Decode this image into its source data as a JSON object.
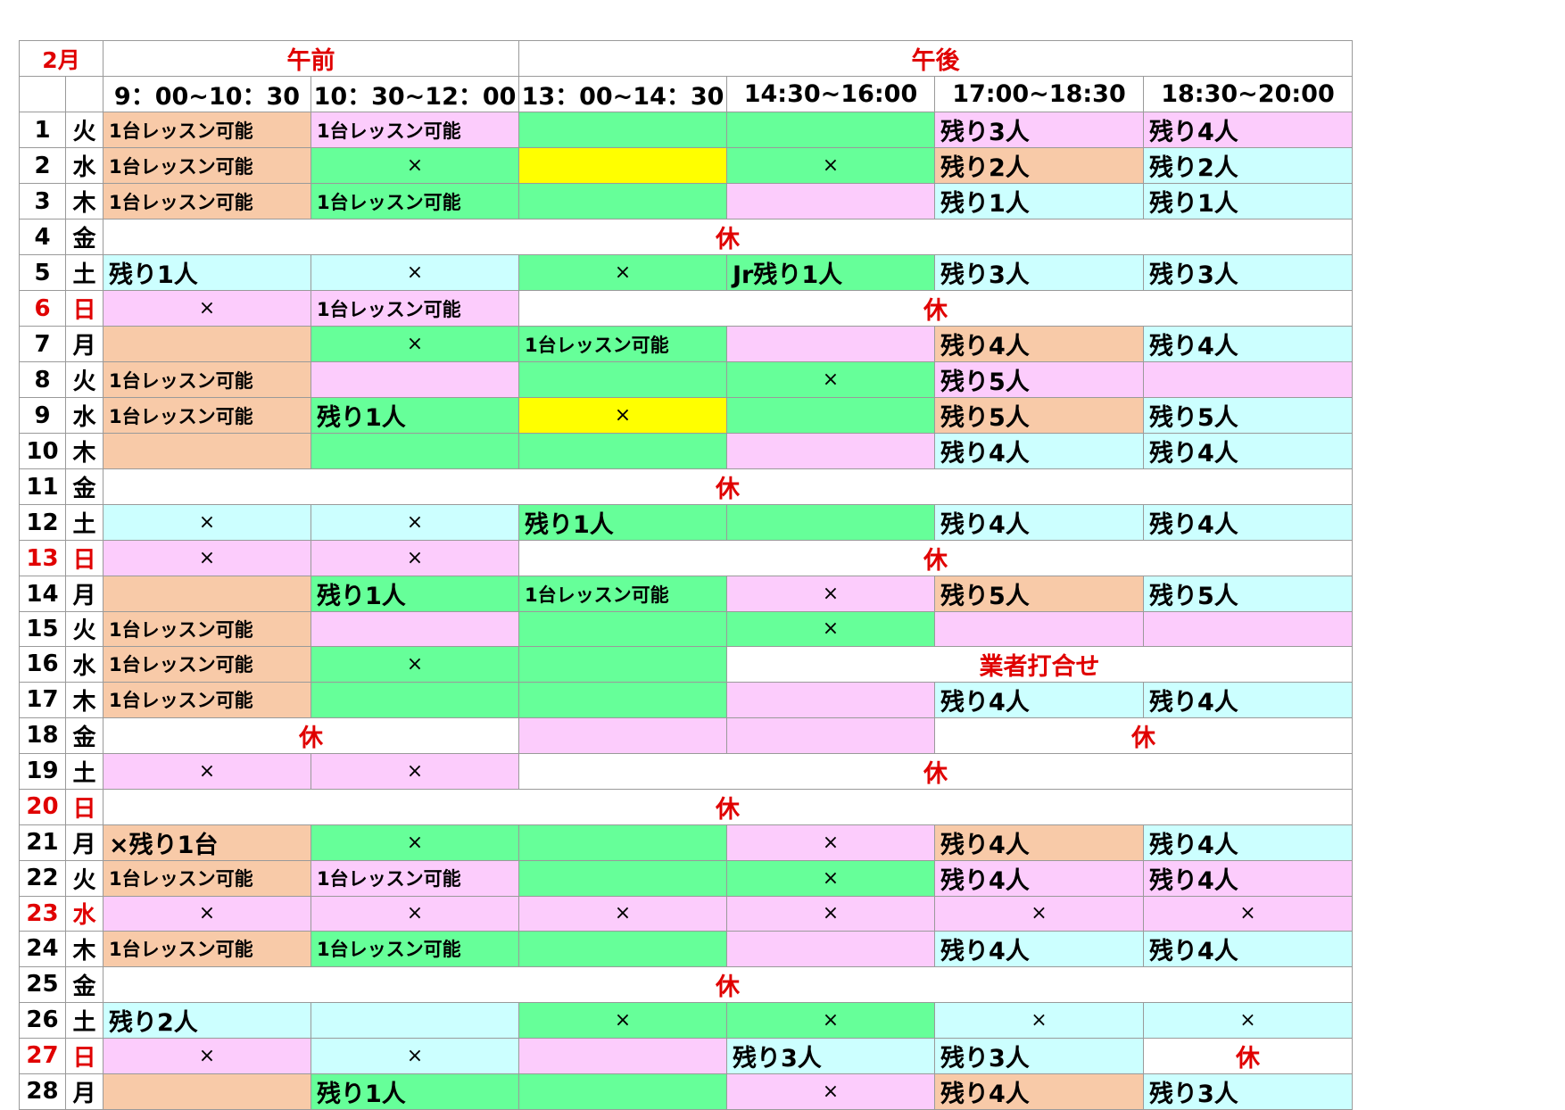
{
  "title": "2月",
  "header": {
    "am": "午前",
    "pm": "午後",
    "slots": [
      "9：00~10：30",
      "10：30~12：00",
      "13：00~14：30",
      "14:30~16:00",
      "17:00~18:30",
      "18:30~20:00"
    ]
  },
  "colors": {
    "salmon": "#f8caa8",
    "pink": "#fcccfc",
    "green": "#66ff99",
    "cyan": "#ccffff",
    "yellow": "#ffff00",
    "white": "#ffffff",
    "holiday_red": "#e00000"
  },
  "rows": [
    {
      "day": "1",
      "weekday": "火",
      "cells": [
        {
          "text": "1台レッスン可能",
          "color": "salmon"
        },
        {
          "text": "1台レッスン可能",
          "color": "pink"
        },
        {
          "text": "",
          "color": "green"
        },
        {
          "text": "",
          "color": "green"
        },
        {
          "text": "残り3人",
          "color": "pink"
        },
        {
          "text": "残り4人",
          "color": "pink"
        }
      ]
    },
    {
      "day": "2",
      "weekday": "水",
      "cells": [
        {
          "text": "1台レッスン可能",
          "color": "salmon"
        },
        {
          "text": "×",
          "color": "green"
        },
        {
          "text": "",
          "color": "yellow"
        },
        {
          "text": "×",
          "color": "green"
        },
        {
          "text": "残り2人",
          "color": "salmon"
        },
        {
          "text": "残り2人",
          "color": "cyan"
        }
      ]
    },
    {
      "day": "3",
      "weekday": "木",
      "cells": [
        {
          "text": "1台レッスン可能",
          "color": "salmon"
        },
        {
          "text": "1台レッスン可能",
          "color": "green"
        },
        {
          "text": "",
          "color": "green"
        },
        {
          "text": "",
          "color": "pink"
        },
        {
          "text": "残り1人",
          "color": "cyan"
        },
        {
          "text": "残り1人",
          "color": "cyan"
        }
      ]
    },
    {
      "day": "4",
      "weekday": "金",
      "cells": [
        {
          "text": "休",
          "color": "white",
          "span": 6
        }
      ]
    },
    {
      "day": "5",
      "weekday": "土",
      "cells": [
        {
          "text": "残り1人",
          "color": "cyan"
        },
        {
          "text": "×",
          "color": "cyan"
        },
        {
          "text": "×",
          "color": "green"
        },
        {
          "text": "Jr残り1人",
          "color": "green"
        },
        {
          "text": "残り3人",
          "color": "cyan"
        },
        {
          "text": "残り3人",
          "color": "cyan"
        }
      ]
    },
    {
      "day": "6",
      "weekday": "日",
      "red": true,
      "cells": [
        {
          "text": "×",
          "color": "pink"
        },
        {
          "text": "1台レッスン可能",
          "color": "pink"
        },
        {
          "text": "休",
          "color": "white",
          "span": 4
        }
      ]
    },
    {
      "day": "7",
      "weekday": "月",
      "cells": [
        {
          "text": "",
          "color": "salmon"
        },
        {
          "text": "×",
          "color": "green"
        },
        {
          "text": "1台レッスン可能",
          "color": "green"
        },
        {
          "text": "",
          "color": "pink"
        },
        {
          "text": "残り4人",
          "color": "salmon"
        },
        {
          "text": "残り4人",
          "color": "cyan"
        }
      ]
    },
    {
      "day": "8",
      "weekday": "火",
      "cells": [
        {
          "text": "1台レッスン可能",
          "color": "salmon"
        },
        {
          "text": "",
          "color": "pink"
        },
        {
          "text": "",
          "color": "green"
        },
        {
          "text": "×",
          "color": "green"
        },
        {
          "text": "残り5人",
          "color": "pink"
        },
        {
          "text": "",
          "color": "pink"
        }
      ]
    },
    {
      "day": "9",
      "weekday": "水",
      "cells": [
        {
          "text": "1台レッスン可能",
          "color": "salmon"
        },
        {
          "text": "残り1人",
          "color": "green"
        },
        {
          "text": "×",
          "color": "yellow"
        },
        {
          "text": "",
          "color": "green"
        },
        {
          "text": "残り5人",
          "color": "salmon"
        },
        {
          "text": "残り5人",
          "color": "cyan"
        }
      ]
    },
    {
      "day": "10",
      "weekday": "木",
      "cells": [
        {
          "text": "",
          "color": "salmon"
        },
        {
          "text": "",
          "color": "green"
        },
        {
          "text": "",
          "color": "green"
        },
        {
          "text": "",
          "color": "pink"
        },
        {
          "text": "残り4人",
          "color": "cyan"
        },
        {
          "text": "残り4人",
          "color": "cyan"
        }
      ]
    },
    {
      "day": "11",
      "weekday": "金",
      "cells": [
        {
          "text": "休",
          "color": "white",
          "span": 6
        }
      ]
    },
    {
      "day": "12",
      "weekday": "土",
      "cells": [
        {
          "text": "×",
          "color": "cyan"
        },
        {
          "text": "×",
          "color": "cyan"
        },
        {
          "text": "残り1人",
          "color": "green"
        },
        {
          "text": "",
          "color": "green"
        },
        {
          "text": "残り4人",
          "color": "cyan"
        },
        {
          "text": "残り4人",
          "color": "cyan"
        }
      ]
    },
    {
      "day": "13",
      "weekday": "日",
      "red": true,
      "cells": [
        {
          "text": "×",
          "color": "pink"
        },
        {
          "text": "×",
          "color": "pink"
        },
        {
          "text": "休",
          "color": "white",
          "span": 4
        }
      ]
    },
    {
      "day": "14",
      "weekday": "月",
      "cells": [
        {
          "text": "",
          "color": "salmon"
        },
        {
          "text": "残り1人",
          "color": "green"
        },
        {
          "text": "1台レッスン可能",
          "color": "green"
        },
        {
          "text": "×",
          "color": "pink"
        },
        {
          "text": "残り5人",
          "color": "salmon"
        },
        {
          "text": "残り5人",
          "color": "cyan"
        }
      ]
    },
    {
      "day": "15",
      "weekday": "火",
      "cells": [
        {
          "text": "1台レッスン可能",
          "color": "salmon"
        },
        {
          "text": "",
          "color": "pink"
        },
        {
          "text": "",
          "color": "green"
        },
        {
          "text": "×",
          "color": "green"
        },
        {
          "text": "",
          "color": "pink"
        },
        {
          "text": "",
          "color": "pink"
        }
      ]
    },
    {
      "day": "16",
      "weekday": "水",
      "cells": [
        {
          "text": "1台レッスン可能",
          "color": "salmon"
        },
        {
          "text": "×",
          "color": "green"
        },
        {
          "text": "",
          "color": "green"
        },
        {
          "text": "業者打合せ",
          "color": "white",
          "span": 3,
          "kind": "note"
        }
      ]
    },
    {
      "day": "17",
      "weekday": "木",
      "cells": [
        {
          "text": "1台レッスン可能",
          "color": "salmon"
        },
        {
          "text": "",
          "color": "green"
        },
        {
          "text": "",
          "color": "green"
        },
        {
          "text": "",
          "color": "pink"
        },
        {
          "text": "残り4人",
          "color": "cyan"
        },
        {
          "text": "残り4人",
          "color": "cyan"
        }
      ]
    },
    {
      "day": "18",
      "weekday": "金",
      "cells": [
        {
          "text": "休",
          "color": "white",
          "span": 2
        },
        {
          "text": "",
          "color": "pink"
        },
        {
          "text": "",
          "color": "pink"
        },
        {
          "text": "休",
          "color": "white",
          "span": 2
        }
      ]
    },
    {
      "day": "19",
      "weekday": "土",
      "cells": [
        {
          "text": "×",
          "color": "pink"
        },
        {
          "text": "×",
          "color": "pink"
        },
        {
          "text": "休",
          "color": "white",
          "span": 4
        }
      ]
    },
    {
      "day": "20",
      "weekday": "日",
      "red": true,
      "cells": [
        {
          "text": "休",
          "color": "white",
          "span": 6
        }
      ]
    },
    {
      "day": "21",
      "weekday": "月",
      "cells": [
        {
          "text": "×残り1台",
          "color": "salmon",
          "kind": "nokori"
        },
        {
          "text": "×",
          "color": "green"
        },
        {
          "text": "",
          "color": "green"
        },
        {
          "text": "×",
          "color": "pink"
        },
        {
          "text": "残り4人",
          "color": "salmon"
        },
        {
          "text": "残り4人",
          "color": "cyan"
        }
      ]
    },
    {
      "day": "22",
      "weekday": "火",
      "cells": [
        {
          "text": "1台レッスン可能",
          "color": "salmon"
        },
        {
          "text": "1台レッスン可能",
          "color": "pink"
        },
        {
          "text": "",
          "color": "green"
        },
        {
          "text": "×",
          "color": "green"
        },
        {
          "text": "残り4人",
          "color": "pink"
        },
        {
          "text": "残り4人",
          "color": "pink"
        }
      ]
    },
    {
      "day": "23",
      "weekday": "水",
      "red": true,
      "cells": [
        {
          "text": "×",
          "color": "pink"
        },
        {
          "text": "×",
          "color": "pink"
        },
        {
          "text": "×",
          "color": "pink"
        },
        {
          "text": "×",
          "color": "pink"
        },
        {
          "text": "×",
          "color": "pink"
        },
        {
          "text": "×",
          "color": "pink"
        }
      ]
    },
    {
      "day": "24",
      "weekday": "木",
      "cells": [
        {
          "text": "1台レッスン可能",
          "color": "salmon"
        },
        {
          "text": "1台レッスン可能",
          "color": "green"
        },
        {
          "text": "",
          "color": "green"
        },
        {
          "text": "",
          "color": "pink"
        },
        {
          "text": "残り4人",
          "color": "cyan"
        },
        {
          "text": "残り4人",
          "color": "cyan"
        }
      ]
    },
    {
      "day": "25",
      "weekday": "金",
      "cells": [
        {
          "text": "休",
          "color": "white",
          "span": 6
        }
      ]
    },
    {
      "day": "26",
      "weekday": "土",
      "cells": [
        {
          "text": "残り2人",
          "color": "cyan"
        },
        {
          "text": "",
          "color": "cyan"
        },
        {
          "text": "×",
          "color": "green"
        },
        {
          "text": "×",
          "color": "green"
        },
        {
          "text": "×",
          "color": "cyan"
        },
        {
          "text": "×",
          "color": "cyan"
        }
      ]
    },
    {
      "day": "27",
      "weekday": "日",
      "red": true,
      "cells": [
        {
          "text": "×",
          "color": "pink"
        },
        {
          "text": "×",
          "color": "cyan"
        },
        {
          "text": "",
          "color": "pink"
        },
        {
          "text": "残り3人",
          "color": "cyan"
        },
        {
          "text": "残り3人",
          "color": "cyan"
        },
        {
          "text": "休",
          "color": "white"
        }
      ]
    },
    {
      "day": "28",
      "weekday": "月",
      "cells": [
        {
          "text": "",
          "color": "salmon"
        },
        {
          "text": "残り1人",
          "color": "green"
        },
        {
          "text": "",
          "color": "green"
        },
        {
          "text": "×",
          "color": "pink"
        },
        {
          "text": "残り4人",
          "color": "salmon"
        },
        {
          "text": "残り3人",
          "color": "cyan"
        }
      ]
    }
  ]
}
